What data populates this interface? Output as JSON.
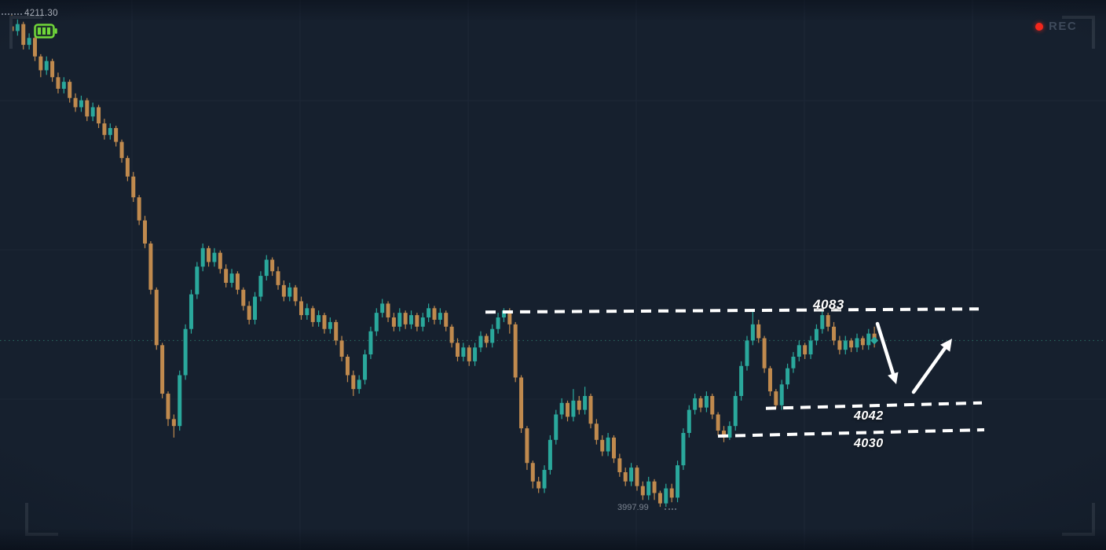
{
  "hud": {
    "rec_label": "REC",
    "top_price_label": "4211.30",
    "low_price_label": "3997.99"
  },
  "colors": {
    "background": "#16202e",
    "bull": "#2aa89c",
    "bear": "#c08a4e",
    "annotation": "#ffffff",
    "rec_dot": "#f5271c",
    "rec_text": "#3f4b5c",
    "current_price_line": "#2c6f66",
    "grid": "#1d2737",
    "bracket": "#2b3542",
    "battery": "#72da3a"
  },
  "chart_data": {
    "type": "candlestick",
    "title": "",
    "xlabel": "",
    "ylabel": "",
    "ylim": [
      3990,
      4217
    ],
    "grid": true,
    "legend": "none",
    "session_high": 4211.3,
    "session_low": 3997.99,
    "current_price": 4070,
    "levels": [
      {
        "label": "4083",
        "price": 4083
      },
      {
        "label": "4042",
        "price": 4042
      },
      {
        "label": "4030",
        "price": 4030
      }
    ],
    "candles_format": [
      "open",
      "high",
      "low",
      "close"
    ],
    "candles": [
      [
        4206,
        4211.3,
        4202,
        4204
      ],
      [
        4204,
        4209,
        4202,
        4207
      ],
      [
        4207,
        4208,
        4196,
        4198
      ],
      [
        4198,
        4203,
        4196,
        4201
      ],
      [
        4201,
        4202,
        4191,
        4193
      ],
      [
        4193,
        4194,
        4184,
        4187
      ],
      [
        4187,
        4193,
        4185,
        4191
      ],
      [
        4191,
        4192,
        4182,
        4184
      ],
      [
        4184,
        4186,
        4177,
        4179
      ],
      [
        4179,
        4184,
        4177,
        4182
      ],
      [
        4182,
        4183,
        4173,
        4175
      ],
      [
        4175,
        4177,
        4169,
        4171
      ],
      [
        4171,
        4176,
        4169,
        4174
      ],
      [
        4174,
        4175,
        4165,
        4167
      ],
      [
        4167,
        4173,
        4165,
        4171
      ],
      [
        4171,
        4172,
        4162,
        4164
      ],
      [
        4164,
        4166,
        4157,
        4159
      ],
      [
        4159,
        4164,
        4157,
        4162
      ],
      [
        4162,
        4163,
        4154,
        4156
      ],
      [
        4156,
        4157,
        4147,
        4149
      ],
      [
        4149,
        4150,
        4139,
        4141
      ],
      [
        4141,
        4143,
        4130,
        4132
      ],
      [
        4132,
        4133,
        4120,
        4122
      ],
      [
        4122,
        4124,
        4110,
        4112
      ],
      [
        4112,
        4113,
        4090,
        4092
      ],
      [
        4092,
        4093,
        4066,
        4068
      ],
      [
        4068,
        4069,
        4045,
        4047
      ],
      [
        4047,
        4048,
        4033,
        4036
      ],
      [
        4036,
        4038,
        4028,
        4033
      ],
      [
        4033,
        4057,
        4031,
        4055
      ],
      [
        4055,
        4077,
        4053,
        4075
      ],
      [
        4075,
        4092,
        4073,
        4090
      ],
      [
        4090,
        4104,
        4088,
        4102
      ],
      [
        4102,
        4112,
        4100,
        4110
      ],
      [
        4110,
        4111,
        4102,
        4104
      ],
      [
        4104,
        4110,
        4102,
        4108
      ],
      [
        4108,
        4109,
        4099,
        4101
      ],
      [
        4101,
        4103,
        4093,
        4095
      ],
      [
        4095,
        4101,
        4093,
        4099
      ],
      [
        4099,
        4100,
        4090,
        4092
      ],
      [
        4092,
        4093,
        4083,
        4085
      ],
      [
        4085,
        4087,
        4077,
        4079
      ],
      [
        4079,
        4091,
        4077,
        4089
      ],
      [
        4089,
        4100,
        4087,
        4098
      ],
      [
        4098,
        4107,
        4096,
        4105
      ],
      [
        4105,
        4106,
        4098,
        4100
      ],
      [
        4100,
        4102,
        4092,
        4094
      ],
      [
        4094,
        4096,
        4087,
        4089
      ],
      [
        4089,
        4095,
        4087,
        4093
      ],
      [
        4093,
        4094,
        4085,
        4087
      ],
      [
        4087,
        4089,
        4079,
        4081
      ],
      [
        4081,
        4086,
        4079,
        4084
      ],
      [
        4084,
        4085,
        4076,
        4078
      ],
      [
        4078,
        4083,
        4076,
        4081
      ],
      [
        4081,
        4082,
        4073,
        4075
      ],
      [
        4075,
        4080,
        4073,
        4078
      ],
      [
        4078,
        4079,
        4068,
        4070
      ],
      [
        4070,
        4072,
        4061,
        4063
      ],
      [
        4063,
        4064,
        4052,
        4055
      ],
      [
        4055,
        4057,
        4046,
        4049
      ],
      [
        4049,
        4055,
        4047,
        4053
      ],
      [
        4053,
        4066,
        4051,
        4064
      ],
      [
        4064,
        4076,
        4062,
        4074
      ],
      [
        4074,
        4084,
        4072,
        4082
      ],
      [
        4082,
        4088,
        4080,
        4086
      ],
      [
        4086,
        4087,
        4078,
        4080
      ],
      [
        4080,
        4082,
        4074,
        4076
      ],
      [
        4076,
        4084,
        4074,
        4082
      ],
      [
        4082,
        4083,
        4075,
        4077
      ],
      [
        4077,
        4083,
        4075,
        4081
      ],
      [
        4081,
        4082,
        4074,
        4076
      ],
      [
        4076,
        4082,
        4074,
        4080
      ],
      [
        4080,
        4086,
        4078,
        4084
      ],
      [
        4084,
        4085,
        4077,
        4079
      ],
      [
        4079,
        4084,
        4077,
        4082
      ],
      [
        4082,
        4083,
        4074,
        4076
      ],
      [
        4076,
        4077,
        4067,
        4069
      ],
      [
        4069,
        4071,
        4061,
        4063
      ],
      [
        4063,
        4069,
        4061,
        4067
      ],
      [
        4067,
        4068,
        4059,
        4061
      ],
      [
        4061,
        4069,
        4059,
        4067
      ],
      [
        4067,
        4074,
        4065,
        4072
      ],
      [
        4072,
        4073,
        4067,
        4069
      ],
      [
        4069,
        4077,
        4067,
        4075
      ],
      [
        4075,
        4082,
        4073,
        4080
      ],
      [
        4080,
        4084,
        4078,
        4083
      ],
      [
        4083,
        4084,
        4073,
        4077
      ],
      [
        4077,
        4078,
        4052,
        4054
      ],
      [
        4054,
        4055,
        4030,
        4032
      ],
      [
        4032,
        4033,
        4014,
        4017
      ],
      [
        4017,
        4018,
        4006,
        4009
      ],
      [
        4009,
        4011,
        4004,
        4006
      ],
      [
        4006,
        4016,
        4004,
        4014
      ],
      [
        4014,
        4029,
        4012,
        4027
      ],
      [
        4027,
        4040,
        4025,
        4038
      ],
      [
        4038,
        4045,
        4036,
        4043
      ],
      [
        4043,
        4044,
        4035,
        4037
      ],
      [
        4037,
        4049,
        4035,
        4044
      ],
      [
        4044,
        4046,
        4038,
        4040
      ],
      [
        4040,
        4050,
        4038,
        4046
      ],
      [
        4046,
        4047,
        4032,
        4034
      ],
      [
        4034,
        4036,
        4025,
        4027
      ],
      [
        4027,
        4029,
        4020,
        4022
      ],
      [
        4022,
        4030,
        4020,
        4028
      ],
      [
        4028,
        4029,
        4017,
        4019
      ],
      [
        4019,
        4021,
        4011,
        4013
      ],
      [
        4013,
        4015,
        4007,
        4009
      ],
      [
        4009,
        4017,
        4007,
        4015
      ],
      [
        4015,
        4016,
        4005,
        4007
      ],
      [
        4007,
        4009,
        4001,
        4003
      ],
      [
        4003,
        4011,
        4001,
        4009
      ],
      [
        4009,
        4010,
        4001,
        4004
      ],
      [
        4004,
        4005,
        3997.99,
        3999.5
      ],
      [
        3999.5,
        4008,
        3998,
        4006
      ],
      [
        4006,
        4008,
        4000,
        4002
      ],
      [
        4002,
        4018,
        4000,
        4016
      ],
      [
        4016,
        4032,
        4014,
        4030
      ],
      [
        4030,
        4042,
        4028,
        4040
      ],
      [
        4040,
        4047,
        4038,
        4045
      ],
      [
        4045,
        4046,
        4039,
        4041
      ],
      [
        4041,
        4048,
        4039,
        4046
      ],
      [
        4046,
        4047,
        4036,
        4038
      ],
      [
        4038,
        4039,
        4029,
        4031
      ],
      [
        4031,
        4033,
        4026,
        4028
      ],
      [
        4028,
        4035,
        4027,
        4033
      ],
      [
        4033,
        4048,
        4031,
        4046
      ],
      [
        4046,
        4061,
        4044,
        4059
      ],
      [
        4059,
        4072,
        4057,
        4070
      ],
      [
        4070,
        4083,
        4068,
        4077
      ],
      [
        4077,
        4079,
        4069,
        4071
      ],
      [
        4071,
        4072,
        4056,
        4058
      ],
      [
        4058,
        4059,
        4046,
        4048
      ],
      [
        4048,
        4049,
        4040.5,
        4042
      ],
      [
        4042,
        4053,
        4040,
        4051
      ],
      [
        4051,
        4060,
        4049,
        4058
      ],
      [
        4058,
        4065,
        4056,
        4063
      ],
      [
        4063,
        4070,
        4061,
        4068
      ],
      [
        4068,
        4069,
        4062,
        4064
      ],
      [
        4064,
        4072,
        4062,
        4070
      ],
      [
        4070,
        4077,
        4068,
        4075
      ],
      [
        4075,
        4084,
        4073,
        4081
      ],
      [
        4081,
        4082,
        4074,
        4076
      ],
      [
        4076,
        4078,
        4068,
        4070
      ],
      [
        4070,
        4072,
        4064,
        4066
      ],
      [
        4066,
        4072,
        4064,
        4070
      ],
      [
        4070,
        4071,
        4065,
        4067
      ],
      [
        4067,
        4073,
        4065,
        4071
      ],
      [
        4071,
        4072,
        4066,
        4068
      ],
      [
        4068,
        4075,
        4066,
        4073
      ],
      [
        4073,
        4076,
        4067,
        4070
      ]
    ]
  }
}
